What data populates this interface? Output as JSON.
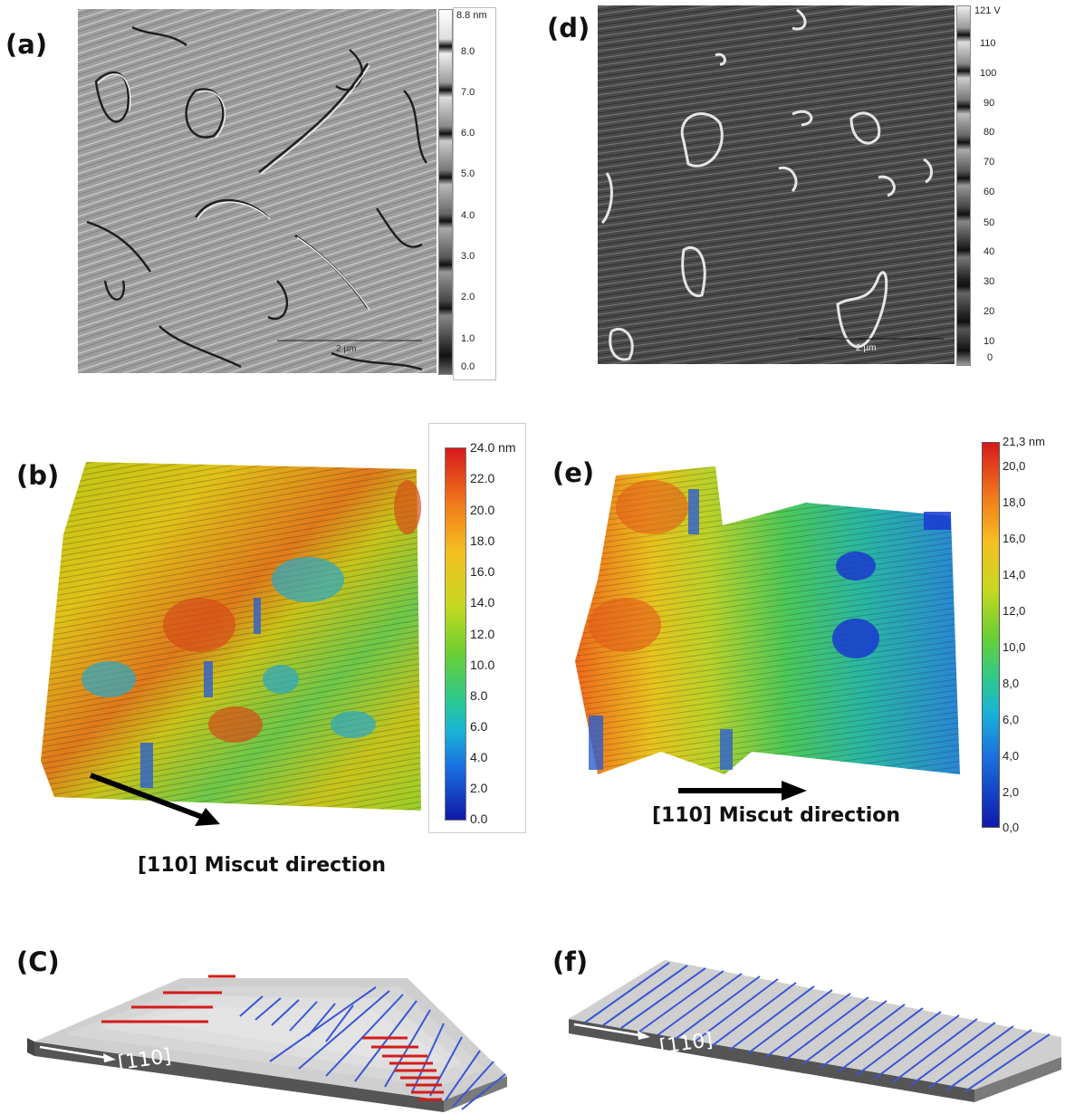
{
  "panels": {
    "a": {
      "label": "(a)",
      "colorbar_ticks": [
        "8.8 nm",
        "8.0",
        "7.0",
        "6.0",
        "5.0",
        "4.0",
        "3.0",
        "2.0",
        "1.0",
        "0.0"
      ],
      "scalebar": "2 µm"
    },
    "d": {
      "label": "(d)",
      "colorbar_ticks": [
        "121 V",
        "110",
        "100",
        "90",
        "80",
        "70",
        "60",
        "50",
        "40",
        "30",
        "20",
        "10",
        "0"
      ],
      "scalebar": "2 µm"
    },
    "b": {
      "label": "(b)",
      "colorbar_ticks": [
        "24.0 nm",
        "22.0",
        "20.0",
        "18.0",
        "16.0",
        "14.0",
        "12.0",
        "10.0",
        "8.0",
        "6.0",
        "4.0",
        "2.0",
        "0.0"
      ],
      "caption": "[110] Miscut direction"
    },
    "e": {
      "label": "(e)",
      "colorbar_ticks": [
        "21,3 nm",
        "20,0",
        "18,0",
        "16,0",
        "14,0",
        "12,0",
        "10,0",
        "8,0",
        "6,0",
        "4,0",
        "2,0",
        "0,0"
      ],
      "caption": "[110] Miscut direction"
    },
    "c": {
      "label": "(C)",
      "arrow_text": "[110]"
    },
    "f": {
      "label": "(f)",
      "arrow_text": "[110]"
    }
  },
  "colors": {
    "step_blue": "#3a56d6",
    "step_red": "#d41c1c",
    "slab_top": "#cfcfcf",
    "slab_side": "#555555"
  }
}
